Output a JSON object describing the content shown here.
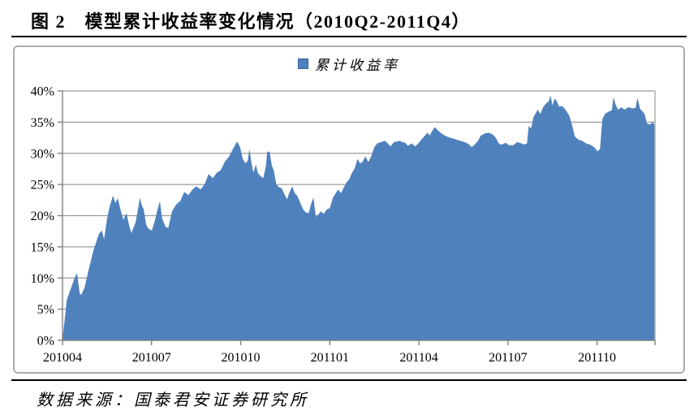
{
  "page": {
    "figure_title": "图 2　模型累计收益率变化情况（2010Q2-2011Q4）",
    "source_note": "数据来源：国泰君安证券研究所"
  },
  "legend": {
    "label": "累计收益率",
    "swatch_color": "#4F81BD"
  },
  "colors": {
    "area_fill": "#4F81BD",
    "grid_line": "#9b9b9b",
    "axis_line": "#7f7f7f",
    "box_border": "#acacac",
    "rule": "#000000"
  },
  "chart_data": {
    "type": "area",
    "title": "",
    "legend_entries": [
      "累计收益率"
    ],
    "legend_position": "top-center",
    "grid": "horizontal",
    "x_axis": {
      "unit": "months since 2010-04",
      "min": 0,
      "max": 19.95,
      "tick_positions": [
        0,
        3,
        6,
        9,
        12,
        15,
        18
      ],
      "tick_labels": [
        "201004",
        "201007",
        "201010",
        "201101",
        "201104",
        "201107",
        "201110"
      ],
      "right_edge_tick": true
    },
    "y_axis": {
      "min": 0,
      "max": 40,
      "tick_step": 5,
      "tick_labels": [
        "0%",
        "5%",
        "10%",
        "15%",
        "20%",
        "25%",
        "30%",
        "35%",
        "40%"
      ]
    },
    "series": [
      {
        "name": "累计收益率",
        "color": "#4F81BD",
        "x": [
          0.0,
          0.1,
          0.14,
          0.27,
          0.41,
          0.49,
          0.58,
          0.63,
          0.74,
          0.88,
          1.04,
          1.15,
          1.23,
          1.33,
          1.4,
          1.5,
          1.59,
          1.7,
          1.78,
          1.86,
          1.95,
          2.05,
          2.15,
          2.24,
          2.32,
          2.46,
          2.56,
          2.6,
          2.68,
          2.73,
          2.82,
          2.9,
          3.01,
          3.1,
          3.2,
          3.28,
          3.36,
          3.47,
          3.56,
          3.69,
          3.83,
          3.97,
          4.1,
          4.24,
          4.38,
          4.51,
          4.65,
          4.79,
          4.92,
          5.06,
          5.2,
          5.33,
          5.47,
          5.61,
          5.74,
          5.88,
          5.98,
          6.07,
          6.16,
          6.24,
          6.29,
          6.38,
          6.43,
          6.51,
          6.58,
          6.68,
          6.76,
          6.85,
          6.89,
          6.97,
          7.05,
          7.11,
          7.2,
          7.28,
          7.38,
          7.47,
          7.56,
          7.65,
          7.74,
          7.82,
          7.9,
          8.01,
          8.1,
          8.2,
          8.29,
          8.38,
          8.45,
          8.53,
          8.62,
          8.7,
          8.8,
          8.9,
          9.0,
          9.11,
          9.2,
          9.28,
          9.38,
          9.47,
          9.56,
          9.65,
          9.74,
          9.84,
          9.93,
          10.02,
          10.1,
          10.2,
          10.3,
          10.4,
          10.5,
          10.6,
          10.72,
          10.86,
          10.95,
          11.05,
          11.16,
          11.26,
          11.35,
          11.45,
          11.54,
          11.63,
          11.76,
          11.88,
          12.0,
          12.1,
          12.2,
          12.28,
          12.37,
          12.45,
          12.53,
          12.64,
          12.73,
          12.85,
          12.99,
          13.13,
          13.26,
          13.4,
          13.54,
          13.67,
          13.78,
          13.88,
          13.99,
          14.08,
          14.22,
          14.36,
          14.49,
          14.6,
          14.7,
          14.8,
          14.92,
          15.04,
          15.18,
          15.31,
          15.45,
          15.56,
          15.64,
          15.7,
          15.78,
          15.86,
          16.0,
          16.09,
          16.18,
          16.28,
          16.37,
          16.43,
          16.5,
          16.57,
          16.64,
          16.72,
          16.82,
          16.95,
          17.07,
          17.16,
          17.25,
          17.37,
          17.5,
          17.63,
          17.76,
          17.9,
          18.02,
          18.1,
          18.18,
          18.28,
          18.4,
          18.5,
          18.55,
          18.62,
          18.7,
          18.82,
          18.92,
          19.06,
          19.2,
          19.3,
          19.36,
          19.45,
          19.52,
          19.6,
          19.68,
          19.78,
          19.87,
          19.93
        ],
        "values": [
          0.2,
          4.5,
          6.4,
          8.2,
          10.0,
          10.8,
          7.5,
          7.3,
          8.4,
          11.3,
          14.4,
          16.0,
          17.1,
          17.6,
          16.2,
          19.5,
          21.5,
          23.2,
          22.0,
          22.8,
          21.0,
          19.3,
          20.4,
          18.5,
          17.2,
          18.9,
          21.5,
          22.9,
          21.5,
          21.1,
          18.5,
          17.9,
          17.6,
          19.0,
          21.0,
          22.3,
          19.5,
          18.2,
          18.0,
          20.7,
          21.8,
          22.4,
          23.8,
          23.3,
          24.2,
          24.7,
          24.2,
          25.1,
          26.7,
          26.0,
          26.9,
          27.3,
          28.7,
          29.5,
          30.7,
          31.9,
          31.0,
          29.1,
          28.4,
          28.8,
          30.7,
          28.0,
          26.9,
          28.2,
          26.8,
          26.3,
          26.0,
          28.0,
          30.2,
          30.3,
          28.0,
          27.3,
          25.0,
          24.6,
          24.4,
          23.5,
          22.6,
          23.8,
          24.7,
          23.6,
          23.2,
          22.0,
          21.0,
          20.5,
          20.4,
          22.0,
          22.9,
          19.8,
          20.2,
          20.7,
          20.3,
          21.0,
          21.2,
          22.9,
          23.6,
          24.2,
          23.6,
          24.5,
          25.3,
          25.8,
          26.8,
          27.6,
          29.1,
          28.4,
          28.6,
          29.5,
          28.6,
          29.6,
          31.0,
          31.6,
          31.8,
          32.0,
          31.6,
          31.1,
          31.8,
          31.9,
          32.0,
          31.8,
          31.7,
          31.2,
          31.6,
          31.1,
          31.7,
          32.3,
          32.8,
          33.3,
          32.9,
          33.6,
          34.2,
          33.7,
          33.3,
          32.9,
          32.6,
          32.4,
          32.2,
          32.0,
          31.8,
          31.5,
          31.0,
          31.4,
          32.0,
          32.8,
          33.2,
          33.3,
          33.0,
          32.4,
          31.5,
          31.4,
          31.7,
          31.3,
          31.3,
          31.8,
          31.6,
          31.4,
          31.6,
          34.4,
          34.0,
          35.8,
          37.0,
          36.3,
          37.4,
          38.0,
          38.3,
          39.3,
          37.7,
          38.8,
          38.4,
          37.5,
          37.6,
          36.9,
          36.0,
          34.5,
          32.7,
          32.2,
          32.0,
          31.6,
          31.4,
          31.0,
          30.3,
          30.7,
          35.5,
          36.4,
          36.7,
          36.9,
          39.0,
          37.9,
          37.0,
          37.4,
          37.0,
          37.4,
          37.2,
          37.3,
          38.9,
          37.1,
          36.8,
          36.3,
          34.8,
          34.6,
          35.0,
          34.6
        ]
      }
    ]
  }
}
